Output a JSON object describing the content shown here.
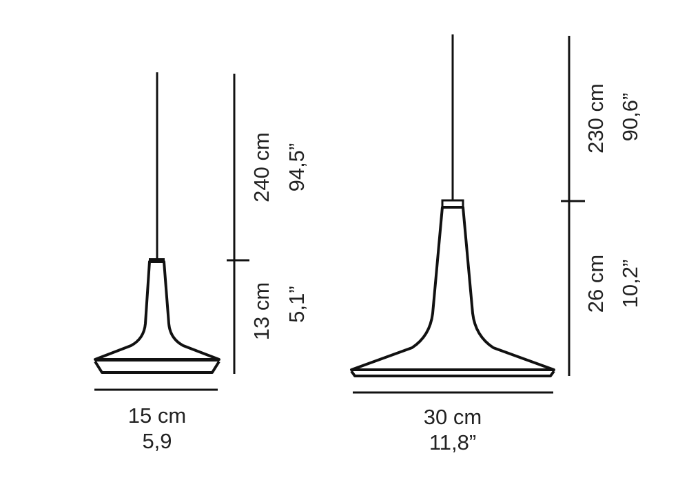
{
  "small_lamp": {
    "height_cord": "240 cm",
    "height_cord_in": "94,5”",
    "height_body": "13 cm",
    "height_body_in": "5,1”",
    "width": "15 cm",
    "width_in": "5,9"
  },
  "large_lamp": {
    "height_cord": "230 cm",
    "height_cord_in": "90,6”",
    "height_body": "26 cm",
    "height_body_in": "10,2”",
    "width": "30 cm",
    "width_in": "11,8”"
  },
  "colors": {
    "line": "#111111",
    "background": "#ffffff"
  }
}
